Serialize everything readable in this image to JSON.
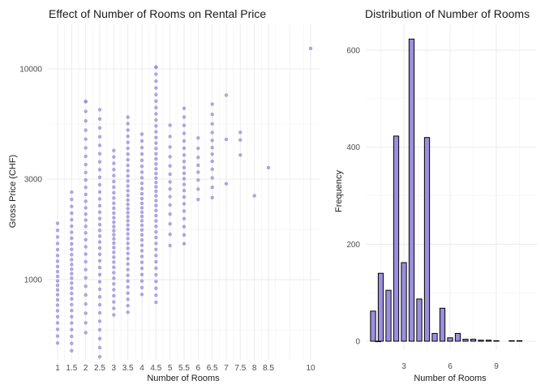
{
  "chart_data": [
    {
      "type": "scatter",
      "title": "Effect of Number of Rooms on Rental Price",
      "xlabel": "Number of Rooms",
      "ylabel": "Gross Price (CHF)",
      "y_scale": "log10",
      "xlim": [
        1,
        10
      ],
      "ylim": [
        400,
        14000
      ],
      "x_ticks": [
        {
          "value": 1,
          "label": "1"
        },
        {
          "value": 1.5,
          "label": "1.5"
        },
        {
          "value": 2,
          "label": "2"
        },
        {
          "value": 2.5,
          "label": "2.5"
        },
        {
          "value": 3,
          "label": "3"
        },
        {
          "value": 3.5,
          "label": "3.5"
        },
        {
          "value": 4,
          "label": "4"
        },
        {
          "value": 4.5,
          "label": "4.5"
        },
        {
          "value": 5,
          "label": "5"
        },
        {
          "value": 5.5,
          "label": "5.5"
        },
        {
          "value": 6,
          "label": "6"
        },
        {
          "value": 6.5,
          "label": "6.5"
        },
        {
          "value": 7,
          "label": "7"
        },
        {
          "value": 7.5,
          "label": "7.5"
        },
        {
          "value": 8,
          "label": "8"
        },
        {
          "value": 8.5,
          "label": "8.5"
        },
        {
          "value": 10,
          "label": "10"
        }
      ],
      "y_ticks": [
        {
          "value": 1000,
          "label": "1000"
        },
        {
          "value": 3000,
          "label": "3000"
        },
        {
          "value": 10000,
          "label": "10000"
        }
      ],
      "point_color": "#9b8fde",
      "grid": true,
      "point_ranges": [
        {
          "x": 1,
          "min": 500,
          "max": 1850,
          "n": 22
        },
        {
          "x": 1.5,
          "min": 460,
          "max": 2600,
          "n": 28
        },
        {
          "x": 2,
          "min": 560,
          "max": 7000,
          "n": 30
        },
        {
          "x": 2.5,
          "min": 430,
          "max": 6400,
          "n": 34
        },
        {
          "x": 3,
          "min": 680,
          "max": 4100,
          "n": 32
        },
        {
          "x": 3.5,
          "min": 700,
          "max": 5900,
          "n": 38
        },
        {
          "x": 4,
          "min": 850,
          "max": 4900,
          "n": 30
        },
        {
          "x": 4.5,
          "min": 780,
          "max": 10200,
          "n": 42
        },
        {
          "x": 5,
          "min": 1450,
          "max": 5400,
          "n": 14
        },
        {
          "x": 5.5,
          "min": 1480,
          "max": 6500,
          "n": 20
        },
        {
          "x": 6,
          "min": 2400,
          "max": 4700,
          "n": 8
        },
        {
          "x": 6.5,
          "min": 2450,
          "max": 6800,
          "n": 12
        },
        {
          "x": 7,
          "min": 2850,
          "max": 7500,
          "n": 3
        }
      ],
      "points": [
        {
          "x": 2,
          "y": 7000
        },
        {
          "x": 4.5,
          "y": 10200
        },
        {
          "x": 7.5,
          "y": 5000
        },
        {
          "x": 7.5,
          "y": 4600
        },
        {
          "x": 7.5,
          "y": 3900
        },
        {
          "x": 8,
          "y": 2500
        },
        {
          "x": 8.5,
          "y": 3400
        },
        {
          "x": 10,
          "y": 12500
        }
      ]
    },
    {
      "type": "bar",
      "subtype": "histogram",
      "title": "Distribution of Number of Rooms",
      "xlabel": "Number of Rooms",
      "ylabel": "Frequency",
      "xlim": [
        0.7,
        11.5
      ],
      "ylim": [
        0,
        640
      ],
      "x_ticks": [
        {
          "value": 3,
          "label": "3"
        },
        {
          "value": 6,
          "label": "6"
        },
        {
          "value": 9,
          "label": "9"
        }
      ],
      "y_ticks": [
        {
          "value": 0,
          "label": "0"
        },
        {
          "value": 200,
          "label": "200"
        },
        {
          "value": 400,
          "label": "400"
        },
        {
          "value": 600,
          "label": "600"
        }
      ],
      "bin_width": 0.33,
      "fill_color": "#9b8fde",
      "edge_color": "#000000",
      "grid": true,
      "bins": [
        {
          "x": 1.0,
          "value": 62
        },
        {
          "x": 1.33,
          "value": 0
        },
        {
          "x": 1.5,
          "value": 140
        },
        {
          "x": 2.0,
          "value": 105
        },
        {
          "x": 2.5,
          "value": 423
        },
        {
          "x": 3.0,
          "value": 162
        },
        {
          "x": 3.5,
          "value": 623
        },
        {
          "x": 4.0,
          "value": 87
        },
        {
          "x": 4.5,
          "value": 420
        },
        {
          "x": 5.0,
          "value": 16
        },
        {
          "x": 5.5,
          "value": 68
        },
        {
          "x": 6.0,
          "value": 7
        },
        {
          "x": 6.5,
          "value": 16
        },
        {
          "x": 7.0,
          "value": 4
        },
        {
          "x": 7.5,
          "value": 4
        },
        {
          "x": 8.0,
          "value": 2
        },
        {
          "x": 8.5,
          "value": 2
        },
        {
          "x": 9.0,
          "value": 1
        },
        {
          "x": 10.0,
          "value": 1
        },
        {
          "x": 10.5,
          "value": 1
        }
      ]
    }
  ]
}
